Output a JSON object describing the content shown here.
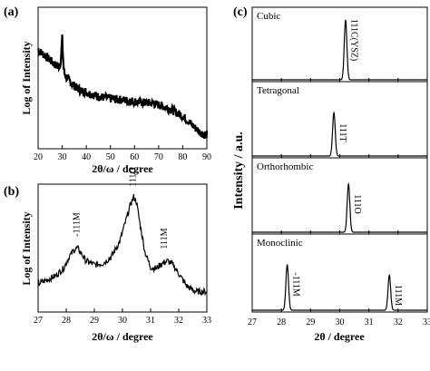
{
  "chart_data": [
    {
      "panel": "(a)",
      "type": "line",
      "xlabel": "2θ/ω / degree",
      "ylabel": "Log of Intensity",
      "xlim": [
        20,
        90
      ],
      "xticks": [
        20,
        30,
        40,
        50,
        60,
        70,
        80,
        90
      ],
      "y_tick_labels": false,
      "series": [
        {
          "x": [
            20,
            22,
            24,
            26,
            28,
            29,
            29.5,
            30,
            30.3,
            30.6,
            31,
            32,
            34,
            36,
            38,
            40,
            42,
            45,
            48,
            50,
            52,
            55,
            58,
            60,
            62,
            65,
            68,
            70,
            72,
            75,
            78,
            80,
            82,
            85,
            87,
            89,
            90
          ],
          "y": [
            0.7,
            0.67,
            0.64,
            0.61,
            0.58,
            0.59,
            0.64,
            0.78,
            0.66,
            0.57,
            0.53,
            0.5,
            0.46,
            0.43,
            0.41,
            0.4,
            0.385,
            0.37,
            0.36,
            0.355,
            0.35,
            0.345,
            0.34,
            0.335,
            0.33,
            0.325,
            0.32,
            0.31,
            0.3,
            0.28,
            0.25,
            0.23,
            0.2,
            0.15,
            0.12,
            0.1,
            0.1
          ]
        }
      ]
    },
    {
      "panel": "(b)",
      "type": "line",
      "xlabel": "2θ/ω / degree",
      "ylabel": "Log of Intensity",
      "xlim": [
        27,
        33
      ],
      "xticks": [
        27,
        28,
        29,
        30,
        31,
        32,
        33
      ],
      "y_tick_labels": false,
      "series": [
        {
          "x": [
            27,
            27.3,
            27.6,
            27.9,
            28.1,
            28.3,
            28.4,
            28.5,
            28.7,
            29.0,
            29.3,
            29.6,
            29.9,
            30.1,
            30.3,
            30.4,
            30.5,
            30.6,
            30.8,
            31.0,
            31.2,
            31.4,
            31.6,
            31.8,
            32.0,
            32.3,
            32.6,
            33.0
          ],
          "y": [
            0.22,
            0.25,
            0.28,
            0.34,
            0.43,
            0.49,
            0.5,
            0.47,
            0.4,
            0.37,
            0.38,
            0.43,
            0.55,
            0.7,
            0.85,
            0.9,
            0.86,
            0.72,
            0.47,
            0.35,
            0.34,
            0.38,
            0.4,
            0.37,
            0.3,
            0.2,
            0.16,
            0.16
          ]
        }
      ],
      "annotations": [
        {
          "text": "-111M",
          "x": 28.4
        },
        {
          "text": "111O",
          "x": 30.4
        },
        {
          "text": "111M",
          "x": 31.5
        }
      ]
    },
    {
      "panel": "(c)",
      "type": "line",
      "xlabel": "2θ / degree",
      "ylabel": "Intensity / a.u.",
      "xlim": [
        27,
        33
      ],
      "xticks": [
        27,
        28,
        29,
        30,
        31,
        32,
        33
      ],
      "y_tick_labels": false,
      "subplots": [
        {
          "label": "Cubic",
          "peaks": [
            {
              "x": 30.2,
              "label": "111C(YSZ)"
            }
          ]
        },
        {
          "label": "Tetragonal",
          "peaks": [
            {
              "x": 29.8,
              "label": "111T"
            }
          ]
        },
        {
          "label": "Orthorhombic",
          "peaks": [
            {
              "x": 30.3,
              "label": "111O"
            }
          ]
        },
        {
          "label": "Monoclinic",
          "peaks": [
            {
              "x": 28.2,
              "label": "-111M"
            },
            {
              "x": 31.7,
              "label": "111M"
            }
          ]
        }
      ]
    }
  ]
}
